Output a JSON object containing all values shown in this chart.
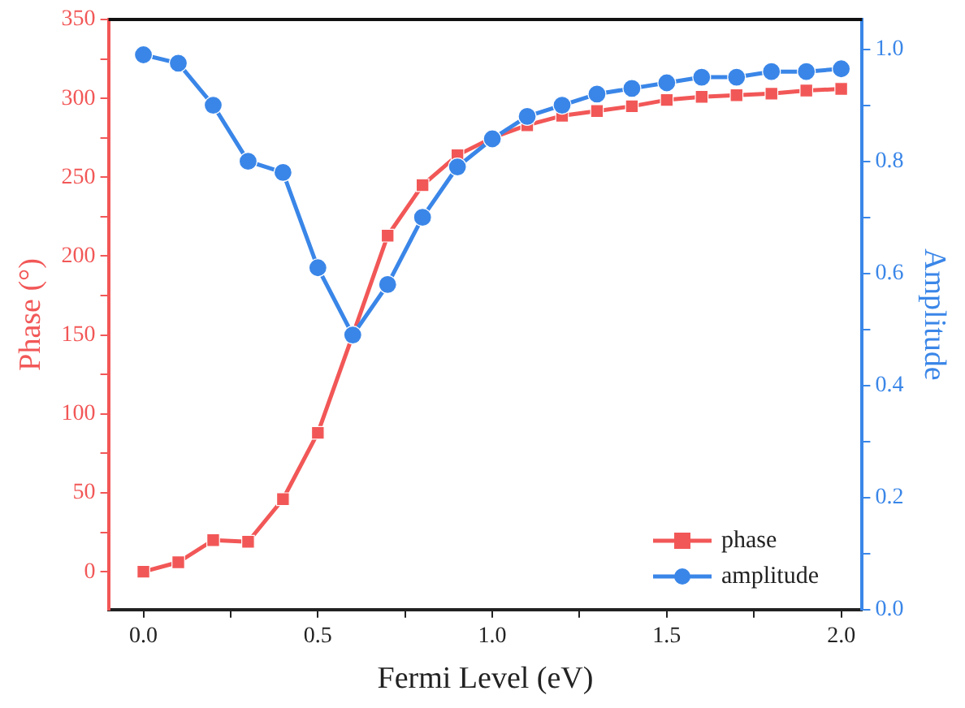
{
  "chart_data": {
    "type": "line",
    "xlabel": "Fermi Level (eV)",
    "ylabel": "Phase (°)",
    "y2label": "Amplitude",
    "x": [
      0,
      0.1,
      0.2,
      0.3,
      0.4,
      0.5,
      0.6,
      0.7,
      0.8,
      0.9,
      1.0,
      1.1,
      1.2,
      1.3,
      1.4,
      1.5,
      1.6,
      1.7,
      1.8,
      1.9,
      2.0
    ],
    "series": [
      {
        "name": "phase",
        "color": "#f25757",
        "marker": "square",
        "values": [
          0,
          6,
          20,
          19,
          46,
          88,
          150,
          213,
          245,
          264,
          275,
          283,
          289,
          292,
          295,
          299,
          301,
          302,
          303,
          305,
          306
        ]
      },
      {
        "name": "amplitude",
        "color": "#3a86e8",
        "marker": "circle",
        "axis": "y2",
        "values": [
          0.99,
          0.975,
          0.9,
          0.8,
          0.78,
          0.61,
          0.49,
          0.58,
          0.7,
          0.79,
          0.84,
          0.88,
          0.9,
          0.92,
          0.93,
          0.94,
          0.95,
          0.95,
          0.96,
          0.96,
          0.965
        ]
      }
    ],
    "xlim": [
      -0.1,
      2.06
    ],
    "xticks": [
      {
        "value": 0,
        "label": "0.0"
      },
      {
        "value": 0.25,
        "label": null
      },
      {
        "value": 0.5,
        "label": "0.5"
      },
      {
        "value": 0.75,
        "label": null
      },
      {
        "value": 1,
        "label": "1.0"
      },
      {
        "value": 1.25,
        "label": null
      },
      {
        "value": 1.5,
        "label": "1.5"
      },
      {
        "value": 1.75,
        "label": null
      },
      {
        "value": 2,
        "label": "2.0"
      }
    ],
    "ylim": [
      -24,
      350
    ],
    "yticks": [
      0,
      {
        "value": 25,
        "label": null
      },
      50,
      {
        "value": 75,
        "label": null
      },
      100,
      {
        "value": 125,
        "label": null
      },
      150,
      {
        "value": 175,
        "label": null
      },
      200,
      {
        "value": 225,
        "label": null
      },
      250,
      {
        "value": 275,
        "label": null
      },
      300,
      {
        "value": 325,
        "label": null
      },
      350
    ],
    "y2lim": [
      0,
      1.053
    ],
    "y2ticks": [
      {
        "value": 0,
        "label": "0.0"
      },
      {
        "value": 0.1,
        "label": null
      },
      {
        "value": 0.2,
        "label": "0.2"
      },
      {
        "value": 0.3,
        "label": null
      },
      {
        "value": 0.4,
        "label": "0.4"
      },
      {
        "value": 0.5,
        "label": null
      },
      {
        "value": 0.6,
        "label": "0.6"
      },
      {
        "value": 0.7,
        "label": null
      },
      {
        "value": 0.8,
        "label": "0.8"
      },
      {
        "value": 0.9,
        "label": null
      },
      {
        "value": 1,
        "label": "1.0"
      }
    ],
    "grid": false,
    "legend": "bottom right",
    "line_style": "solid"
  }
}
